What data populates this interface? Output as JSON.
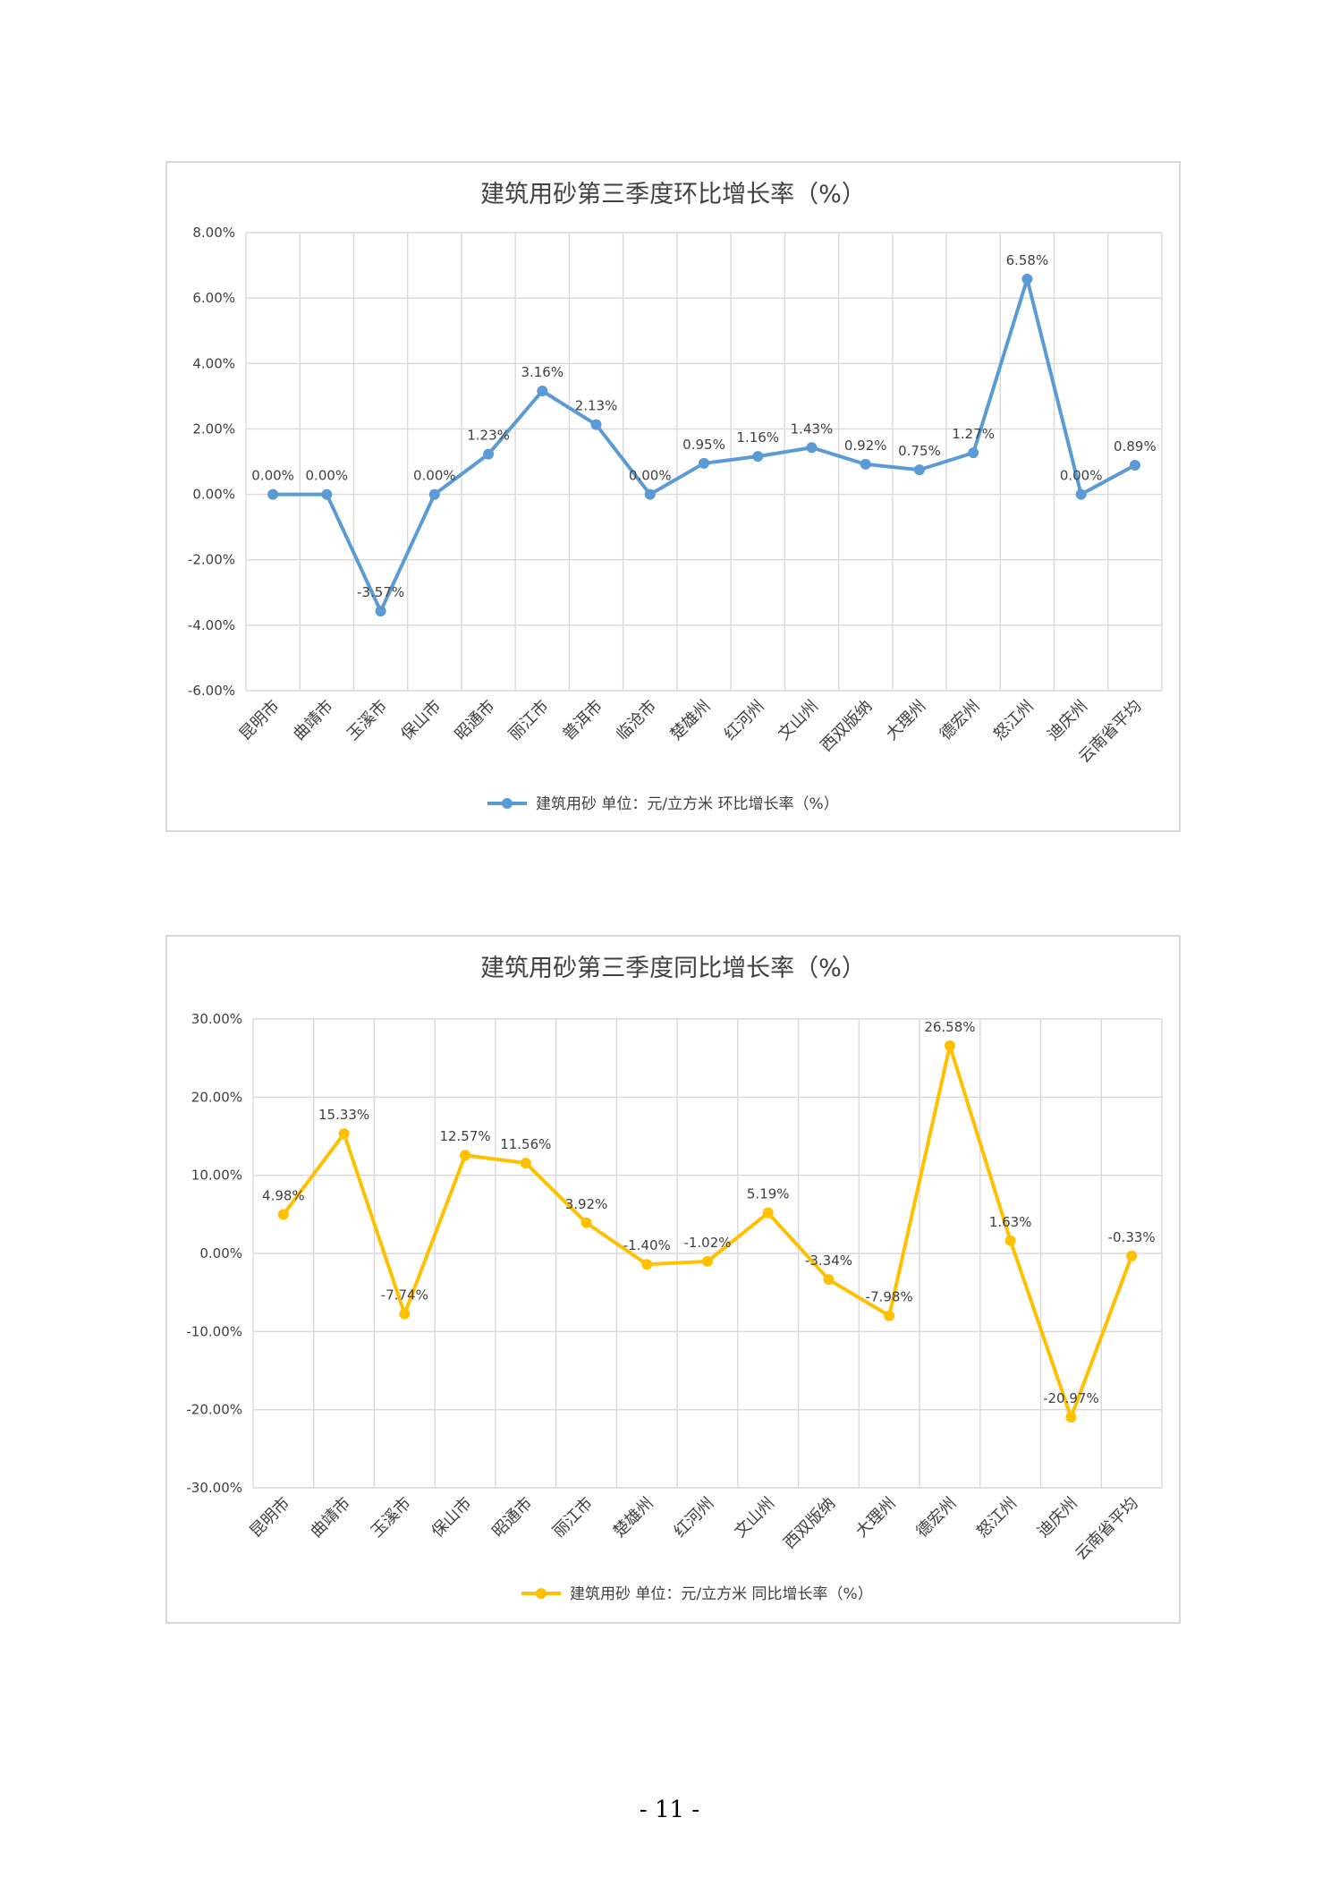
{
  "page": {
    "number": "- 11 -"
  },
  "chart_data": [
    {
      "type": "line",
      "title": "建筑用砂第三季度环比增长率（%）",
      "categories": [
        "昆明市",
        "曲靖市",
        "玉溪市",
        "保山市",
        "昭通市",
        "丽江市",
        "普洱市",
        "临沧市",
        "楚雄州",
        "红河州",
        "文山州",
        "西双版纳",
        "大理州",
        "德宏州",
        "怒江州",
        "迪庆州",
        "云南省平均"
      ],
      "series": [
        {
          "name": "建筑用砂 单位：元/立方米 环比增长率（%）",
          "values": [
            0.0,
            0.0,
            -3.57,
            0.0,
            1.23,
            3.16,
            2.13,
            0.0,
            0.95,
            1.16,
            1.43,
            0.92,
            0.75,
            1.27,
            6.58,
            0.0,
            0.89
          ],
          "labels": [
            "0.00%",
            "0.00%",
            "-3.57%",
            "0.00%",
            "1.23%",
            "3.16%",
            "2.13%",
            "0.00%",
            "0.95%",
            "1.16%",
            "1.43%",
            "0.92%",
            "0.75%",
            "1.27%",
            "6.58%",
            "0.00%",
            "0.89%"
          ],
          "color": "#5b9bd5"
        }
      ],
      "ylim": [
        -6,
        8
      ],
      "ytick_values": [
        -6,
        -4,
        -2,
        0,
        2,
        4,
        6,
        8
      ],
      "yticks": [
        "-6.00%",
        "-4.00%",
        "-2.00%",
        "0.00%",
        "2.00%",
        "4.00%",
        "6.00%",
        "8.00%"
      ],
      "xlabel": "",
      "ylabel": "",
      "grid": true,
      "legend": "bottom"
    },
    {
      "type": "line",
      "title": "建筑用砂第三季度同比增长率（%）",
      "categories": [
        "昆明市",
        "曲靖市",
        "玉溪市",
        "保山市",
        "昭通市",
        "丽江市",
        "楚雄州",
        "红河州",
        "文山州",
        "西双版纳",
        "大理州",
        "德宏州",
        "怒江州",
        "迪庆州",
        "云南省平均"
      ],
      "series": [
        {
          "name": "建筑用砂 单位：元/立方米 同比增长率（%）",
          "values": [
            4.98,
            15.33,
            -7.74,
            12.57,
            11.56,
            3.92,
            -1.4,
            -1.02,
            5.19,
            -3.34,
            -7.98,
            26.58,
            1.63,
            -20.97,
            -0.33
          ],
          "labels": [
            "4.98%",
            "15.33%",
            "-7.74%",
            "12.57%",
            "11.56%",
            "3.92%",
            "-1.40%",
            "-1.02%",
            "5.19%",
            "-3.34%",
            "-7.98%",
            "26.58%",
            "1.63%",
            "-20.97%",
            "-0.33%"
          ],
          "color": "#ffc000"
        }
      ],
      "ylim": [
        -30,
        30
      ],
      "ytick_values": [
        -30,
        -20,
        -10,
        0,
        10,
        20,
        30
      ],
      "yticks": [
        "-30.00%",
        "-20.00%",
        "-10.00%",
        "0.00%",
        "10.00%",
        "20.00%",
        "30.00%"
      ],
      "xlabel": "",
      "ylabel": "",
      "grid": true,
      "legend": "bottom"
    }
  ]
}
